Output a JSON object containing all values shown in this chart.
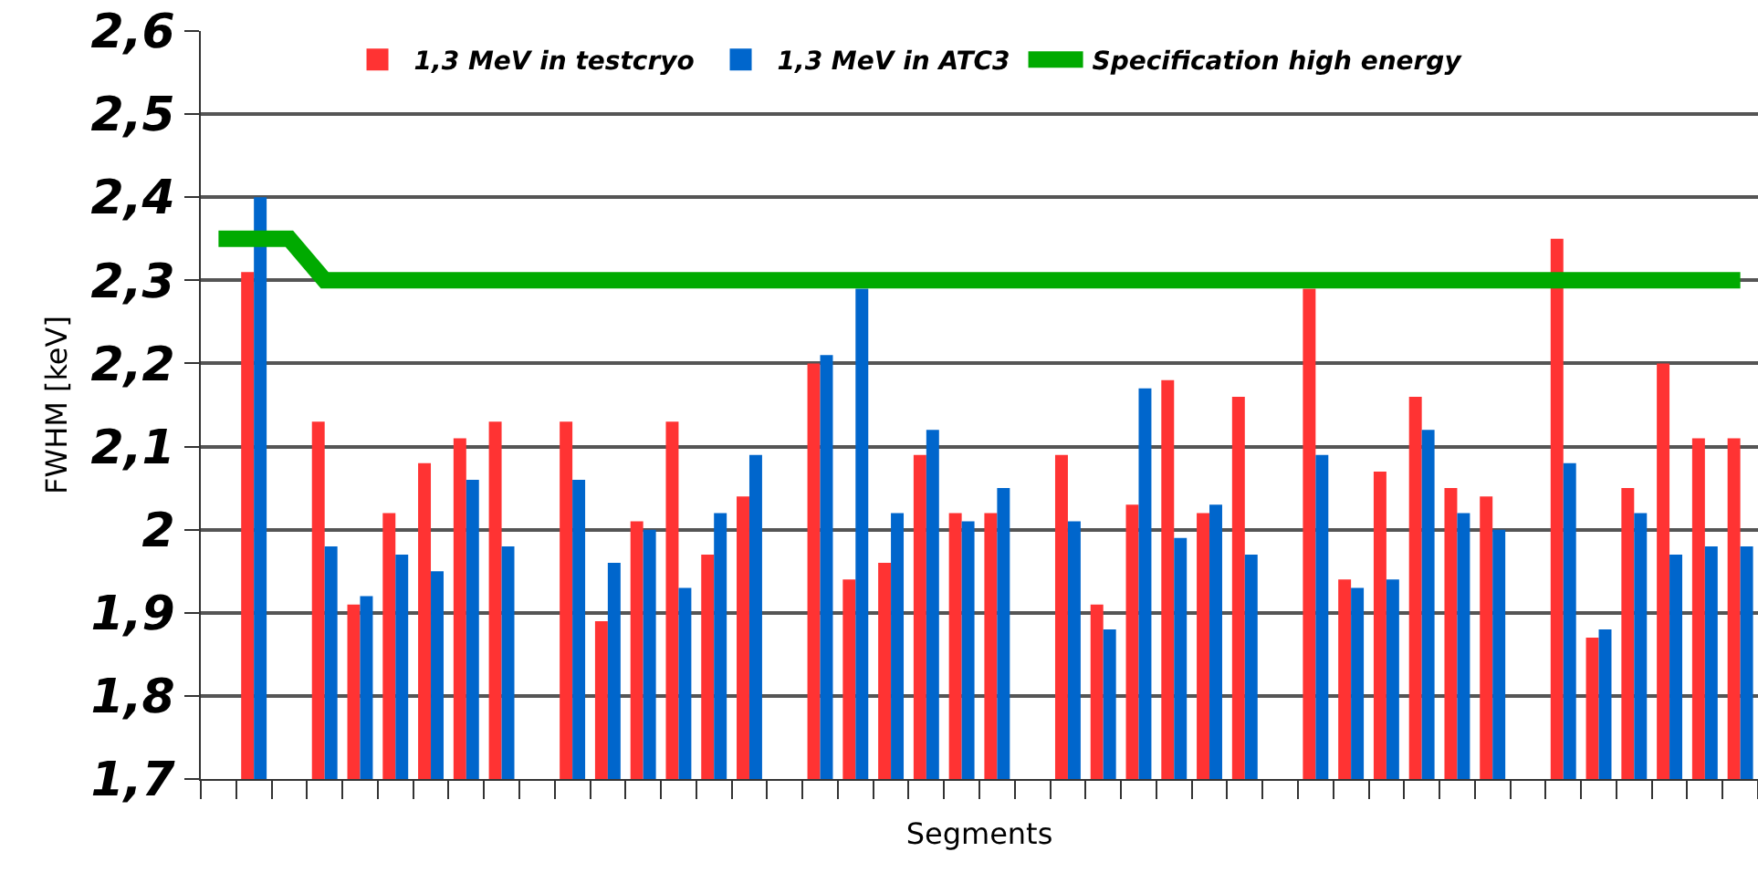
{
  "chart_data": {
    "type": "bar",
    "xlabel": "Segments",
    "ylabel": "FWHM [keV]",
    "categories": [
      null,
      null,
      null,
      null,
      null,
      null,
      null,
      null,
      null,
      null,
      null,
      null,
      null,
      null,
      null,
      null,
      null,
      null,
      null,
      null,
      null,
      null,
      null,
      null,
      null,
      null,
      null,
      null,
      null,
      null,
      null,
      null,
      null,
      null,
      null,
      null,
      null,
      null,
      null,
      null,
      null,
      null,
      null,
      null
    ],
    "series": [
      {
        "name": "1,3 MeV in testcryo",
        "color": "#ff3333",
        "values": [
          null,
          2.31,
          null,
          2.13,
          1.91,
          2.02,
          2.08,
          2.11,
          2.13,
          null,
          2.13,
          1.89,
          2.01,
          2.13,
          1.97,
          2.04,
          null,
          2.2,
          1.94,
          1.96,
          2.09,
          2.02,
          2.02,
          null,
          2.09,
          1.91,
          2.03,
          2.18,
          2.02,
          2.16,
          null,
          2.29,
          1.94,
          2.07,
          2.16,
          2.05,
          2.04,
          null,
          2.35,
          1.87,
          2.05,
          2.2,
          2.11,
          2.11
        ]
      },
      {
        "name": "1,3 MeV in ATC3",
        "color": "#0066cc",
        "values": [
          null,
          2.4,
          null,
          1.98,
          1.92,
          1.97,
          1.95,
          2.06,
          1.98,
          null,
          2.06,
          1.96,
          2.0,
          1.93,
          2.02,
          2.09,
          null,
          2.21,
          2.29,
          2.02,
          2.12,
          2.01,
          2.05,
          null,
          2.01,
          1.88,
          2.17,
          1.99,
          2.03,
          1.97,
          null,
          2.09,
          1.93,
          1.94,
          2.12,
          2.02,
          2.0,
          null,
          2.08,
          1.88,
          2.02,
          1.97,
          1.98,
          1.98
        ]
      },
      {
        "name": "Specification high energy",
        "type": "line",
        "color": "#00aa00",
        "values": [
          2.35,
          2.35,
          2.35,
          2.3,
          2.3,
          2.3,
          2.3,
          2.3,
          2.3,
          2.3,
          2.3,
          2.3,
          2.3,
          2.3,
          2.3,
          2.3,
          2.3,
          2.3,
          2.3,
          2.3,
          2.3,
          2.3,
          2.3,
          2.3,
          2.3,
          2.3,
          2.3,
          2.3,
          2.3,
          2.3,
          2.3,
          2.3,
          2.3,
          2.3,
          2.3,
          2.3,
          2.3,
          2.3,
          2.3,
          2.3,
          2.3,
          2.3,
          2.3,
          2.3
        ]
      }
    ],
    "ylim": [
      1.7,
      2.6
    ],
    "yticks": [
      {
        "value": 1.7,
        "label": "1,7"
      },
      {
        "value": 1.8,
        "label": "1,8"
      },
      {
        "value": 1.9,
        "label": "1,9"
      },
      {
        "value": 2.0,
        "label": "2"
      },
      {
        "value": 2.1,
        "label": "2,1"
      },
      {
        "value": 2.2,
        "label": "2,2"
      },
      {
        "value": 2.3,
        "label": "2,3"
      },
      {
        "value": 2.4,
        "label": "2,4"
      },
      {
        "value": 2.5,
        "label": "2,5"
      },
      {
        "value": 2.6,
        "label": "2,6"
      }
    ],
    "grid": "y",
    "legend": "top",
    "tick_labels": "y",
    "marker": "none",
    "line_style": "solid"
  }
}
